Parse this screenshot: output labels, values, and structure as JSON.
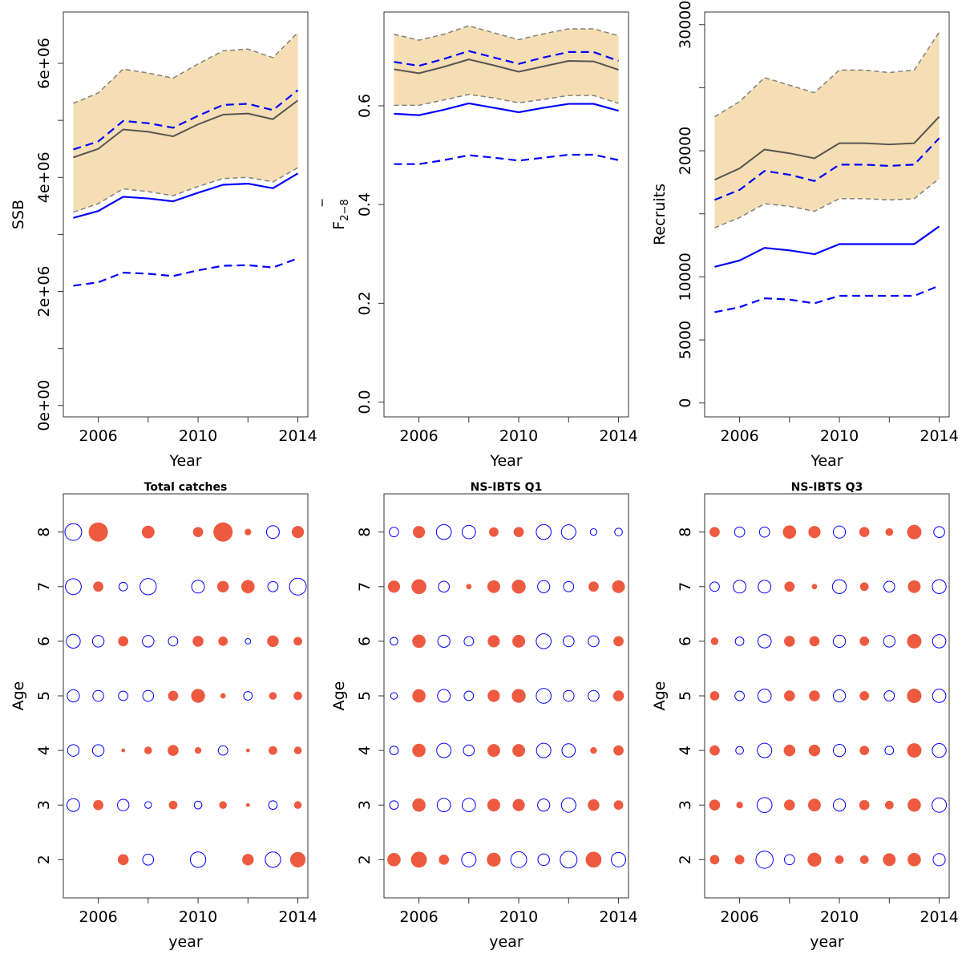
{
  "colors": {
    "band_fill": "#f5deb3",
    "band_edge": "#808080",
    "median_line": "#555555",
    "blue": "#0000ff",
    "positive_bubble": "#ee5a40",
    "negative_bubble": "#0000ff"
  },
  "chart_data": [
    {
      "type": "area",
      "id": "ssb",
      "title": "",
      "xlabel": "Year",
      "ylabel": "SSB",
      "xlim": [
        2004.6,
        2014.4
      ],
      "ylim": [
        -200000,
        6900000
      ],
      "x_ticks": [
        2006,
        2010,
        2014
      ],
      "x_tick_labels": [
        "2006",
        "2010",
        "2014"
      ],
      "x_minor_ticks": [
        2008,
        2012
      ],
      "y_ticks": [
        0,
        2000000,
        4000000,
        6000000
      ],
      "y_tick_labels": [
        "0e+00",
        "2e+06",
        "4e+06",
        "6e+06"
      ],
      "y_minor_ticks": [
        1000000,
        3000000,
        5000000
      ],
      "x": [
        2005,
        2006,
        2007,
        2008,
        2009,
        2010,
        2011,
        2012,
        2013,
        2014
      ],
      "series": [
        {
          "role": "band_upper",
          "values": [
            5300000,
            5480000,
            5900000,
            5830000,
            5740000,
            5990000,
            6220000,
            6250000,
            6100000,
            6540000
          ]
        },
        {
          "role": "band_lower",
          "values": [
            3390000,
            3540000,
            3800000,
            3750000,
            3680000,
            3840000,
            3980000,
            4000000,
            3920000,
            4170000
          ]
        },
        {
          "role": "median",
          "values": [
            4350000,
            4500000,
            4840000,
            4800000,
            4720000,
            4930000,
            5100000,
            5120000,
            5020000,
            5350000
          ]
        },
        {
          "role": "blue_dashed_upper",
          "values": [
            4490000,
            4630000,
            4990000,
            4950000,
            4870000,
            5080000,
            5270000,
            5290000,
            5180000,
            5530000
          ]
        },
        {
          "role": "blue_solid",
          "values": [
            3290000,
            3410000,
            3660000,
            3630000,
            3580000,
            3730000,
            3870000,
            3890000,
            3810000,
            4070000
          ]
        },
        {
          "role": "blue_dashed_lower",
          "values": [
            2100000,
            2160000,
            2330000,
            2310000,
            2270000,
            2370000,
            2450000,
            2460000,
            2420000,
            2580000
          ]
        }
      ]
    },
    {
      "type": "area",
      "id": "fbar",
      "title": "",
      "xlabel": "Year",
      "ylabel": "F",
      "ylabel_sub": "2−8",
      "xlim": [
        2004.6,
        2014.4
      ],
      "ylim": [
        -0.03,
        0.79
      ],
      "x_ticks": [
        2006,
        2010,
        2014
      ],
      "x_tick_labels": [
        "2006",
        "2010",
        "2014"
      ],
      "x_minor_ticks": [
        2008,
        2012
      ],
      "y_ticks": [
        0.0,
        0.2,
        0.4,
        0.6
      ],
      "y_tick_labels": [
        "0.0",
        "0.2",
        "0.4",
        "0.6"
      ],
      "y_minor_ticks": [],
      "x": [
        2005,
        2006,
        2007,
        2008,
        2009,
        2010,
        2011,
        2012,
        2013,
        2014
      ],
      "series": [
        {
          "role": "band_upper",
          "values": [
            0.745,
            0.733,
            0.745,
            0.762,
            0.748,
            0.734,
            0.746,
            0.756,
            0.756,
            0.742
          ]
        },
        {
          "role": "band_lower",
          "values": [
            0.601,
            0.601,
            0.612,
            0.623,
            0.616,
            0.606,
            0.613,
            0.621,
            0.621,
            0.605
          ]
        },
        {
          "role": "median",
          "values": [
            0.674,
            0.666,
            0.679,
            0.694,
            0.682,
            0.669,
            0.68,
            0.691,
            0.69,
            0.673
          ]
        },
        {
          "role": "blue_dashed_upper",
          "values": [
            0.689,
            0.681,
            0.695,
            0.711,
            0.698,
            0.685,
            0.698,
            0.709,
            0.709,
            0.691
          ]
        },
        {
          "role": "blue_solid",
          "values": [
            0.584,
            0.581,
            0.592,
            0.605,
            0.596,
            0.587,
            0.596,
            0.604,
            0.604,
            0.59
          ]
        },
        {
          "role": "blue_dashed_lower",
          "values": [
            0.482,
            0.482,
            0.49,
            0.5,
            0.495,
            0.489,
            0.495,
            0.501,
            0.501,
            0.49
          ]
        }
      ]
    },
    {
      "type": "area",
      "id": "recruits",
      "title": "",
      "xlabel": "Year",
      "ylabel": "Recruits",
      "xlim": [
        2004.6,
        2014.4
      ],
      "ylim": [
        -1100,
        31000
      ],
      "x_ticks": [
        2006,
        2010,
        2014
      ],
      "x_tick_labels": [
        "2006",
        "2010",
        "2014"
      ],
      "x_minor_ticks": [
        2008,
        2012
      ],
      "y_ticks": [
        0,
        5000,
        10000,
        20000,
        30000
      ],
      "y_tick_labels": [
        "0",
        "5000",
        "10000",
        "20000",
        "30000"
      ],
      "y_minor_ticks": [
        15000,
        25000
      ],
      "x": [
        2005,
        2006,
        2007,
        2008,
        2009,
        2010,
        2011,
        2012,
        2013,
        2014
      ],
      "series": [
        {
          "role": "band_upper",
          "values": [
            22700,
            23900,
            25800,
            25200,
            24600,
            26400,
            26400,
            26200,
            26400,
            29400
          ]
        },
        {
          "role": "band_lower",
          "values": [
            13900,
            14700,
            15800,
            15600,
            15200,
            16200,
            16200,
            16100,
            16200,
            17800
          ]
        },
        {
          "role": "median",
          "values": [
            17700,
            18600,
            20100,
            19800,
            19400,
            20600,
            20600,
            20500,
            20600,
            22700
          ]
        },
        {
          "role": "blue_dashed_upper",
          "values": [
            16100,
            16900,
            18400,
            18100,
            17600,
            18900,
            18900,
            18800,
            18900,
            21000
          ]
        },
        {
          "role": "blue_solid",
          "values": [
            10800,
            11300,
            12300,
            12100,
            11800,
            12600,
            12600,
            12600,
            12600,
            14000
          ]
        },
        {
          "role": "blue_dashed_lower",
          "values": [
            7200,
            7600,
            8300,
            8200,
            7900,
            8500,
            8500,
            8500,
            8500,
            9300
          ]
        }
      ]
    },
    {
      "type": "scatter",
      "id": "catch-residuals",
      "title": "Total catches",
      "xlabel": "year",
      "ylabel": "Age",
      "xlim": [
        2004.6,
        2014.4
      ],
      "ylim": [
        1.3,
        8.7
      ],
      "x_ticks": [
        2006,
        2010,
        2014
      ],
      "x_tick_labels": [
        "2006",
        "2010",
        "2014"
      ],
      "x_minor_ticks": [
        2008,
        2012
      ],
      "y_ticks": [
        2,
        3,
        4,
        5,
        6,
        7,
        8
      ],
      "y_tick_labels": [
        "2",
        "3",
        "4",
        "5",
        "6",
        "7",
        "8"
      ],
      "x": [
        2005,
        2006,
        2007,
        2008,
        2009,
        2010,
        2011,
        2012,
        2013,
        2014
      ],
      "ages": [
        2,
        3,
        4,
        5,
        6,
        7,
        8
      ],
      "residuals": [
        [
          null,
          null,
          0.8,
          -0.8,
          null,
          -1.6,
          null,
          0.9,
          -1.6,
          1.6
        ],
        [
          -1.1,
          0.7,
          -0.9,
          -0.3,
          0.5,
          -0.4,
          0.4,
          0.1,
          -0.5,
          0.4
        ],
        [
          -0.9,
          -0.9,
          0.1,
          0.4,
          0.8,
          0.3,
          -0.6,
          0.1,
          0.5,
          0.4
        ],
        [
          -1.0,
          -0.8,
          -0.6,
          -0.8,
          0.7,
          1.3,
          0.2,
          -0.5,
          0.4,
          0.5
        ],
        [
          -1.3,
          -0.9,
          0.7,
          -0.9,
          -0.6,
          0.8,
          0.6,
          -0.2,
          0.9,
          0.5
        ],
        [
          -1.7,
          0.7,
          -0.5,
          -1.8,
          null,
          -1.1,
          0.9,
          1.2,
          -0.7,
          -1.9
        ],
        [
          -1.9,
          2.5,
          null,
          1.1,
          null,
          0.7,
          2.5,
          0.3,
          -1.1,
          1.0
        ]
      ]
    },
    {
      "type": "scatter",
      "id": "q1-residuals",
      "title": "NS-IBTS Q1",
      "xlabel": "year",
      "ylabel": "Age",
      "xlim": [
        2004.6,
        2014.4
      ],
      "ylim": [
        1.3,
        8.7
      ],
      "x_ticks": [
        2006,
        2010,
        2014
      ],
      "x_tick_labels": [
        "2006",
        "2010",
        "2014"
      ],
      "x_minor_ticks": [
        2008,
        2012
      ],
      "y_ticks": [
        2,
        3,
        4,
        5,
        6,
        7,
        8
      ],
      "y_tick_labels": [
        "2",
        "3",
        "4",
        "5",
        "6",
        "7",
        "8"
      ],
      "x": [
        2005,
        2006,
        2007,
        2008,
        2009,
        2010,
        2011,
        2012,
        2013,
        2014
      ],
      "ages": [
        2,
        3,
        4,
        5,
        6,
        7,
        8
      ],
      "residuals": [
        [
          1.2,
          1.7,
          0.7,
          -1.4,
          1.3,
          -1.7,
          -0.9,
          -1.9,
          1.7,
          -1.4
        ],
        [
          -0.5,
          1.2,
          -1.2,
          -1.2,
          1.1,
          1.0,
          -1.0,
          -1.4,
          0.9,
          0.6
        ],
        [
          -0.5,
          1.2,
          -1.4,
          -0.8,
          1.1,
          1.1,
          -1.4,
          -1.2,
          0.3,
          0.7
        ],
        [
          -0.3,
          1.2,
          -1.1,
          -0.6,
          1.0,
          1.3,
          -1.5,
          -0.8,
          -0.8,
          0.8
        ],
        [
          -0.4,
          1.2,
          -1.0,
          -0.6,
          1.0,
          1.1,
          -1.5,
          -0.8,
          -0.8,
          0.7
        ],
        [
          1.0,
          1.5,
          -0.8,
          0.2,
          1.1,
          1.3,
          -1.0,
          -0.7,
          0.7,
          1.1
        ],
        [
          -0.6,
          1.0,
          -1.5,
          -1.2,
          0.6,
          0.7,
          -1.5,
          -1.4,
          -0.3,
          -0.4
        ]
      ]
    },
    {
      "type": "scatter",
      "id": "q3-residuals",
      "title": "NS-IBTS Q3",
      "xlabel": "year",
      "ylabel": "Age",
      "xlim": [
        2004.6,
        2014.4
      ],
      "ylim": [
        1.3,
        8.7
      ],
      "x_ticks": [
        2006,
        2010,
        2014
      ],
      "x_tick_labels": [
        "2006",
        "2010",
        "2014"
      ],
      "x_minor_ticks": [
        2008,
        2012
      ],
      "y_ticks": [
        2,
        3,
        4,
        5,
        6,
        7,
        8
      ],
      "y_tick_labels": [
        "2",
        "3",
        "4",
        "5",
        "6",
        "7",
        "8"
      ],
      "x": [
        2005,
        2006,
        2007,
        2008,
        2009,
        2010,
        2011,
        2012,
        2013,
        2014
      ],
      "ages": [
        2,
        3,
        4,
        5,
        6,
        7,
        8
      ],
      "residuals": [
        [
          0.6,
          0.6,
          -2.0,
          -0.7,
          1.3,
          0.5,
          0.5,
          1.1,
          1.2,
          -1.0
        ],
        [
          0.8,
          0.3,
          -1.5,
          0.8,
          1.1,
          -1.0,
          0.7,
          0.5,
          1.2,
          -1.4
        ],
        [
          0.7,
          -0.4,
          -1.4,
          0.9,
          0.9,
          -1.0,
          0.6,
          -0.5,
          1.4,
          -1.3
        ],
        [
          0.6,
          -0.6,
          -1.2,
          0.8,
          0.8,
          -1.0,
          0.6,
          -0.7,
          1.4,
          -1.2
        ],
        [
          0.4,
          -0.5,
          -1.2,
          0.8,
          0.7,
          -1.0,
          0.6,
          -0.9,
          1.4,
          -1.2
        ],
        [
          -0.6,
          -1.1,
          -1.1,
          0.7,
          0.2,
          -1.3,
          0.5,
          -0.8,
          1.1,
          -1.3
        ],
        [
          0.7,
          -0.7,
          -0.7,
          1.2,
          1.0,
          -1.0,
          0.7,
          0.4,
          1.4,
          -0.8
        ]
      ]
    }
  ]
}
